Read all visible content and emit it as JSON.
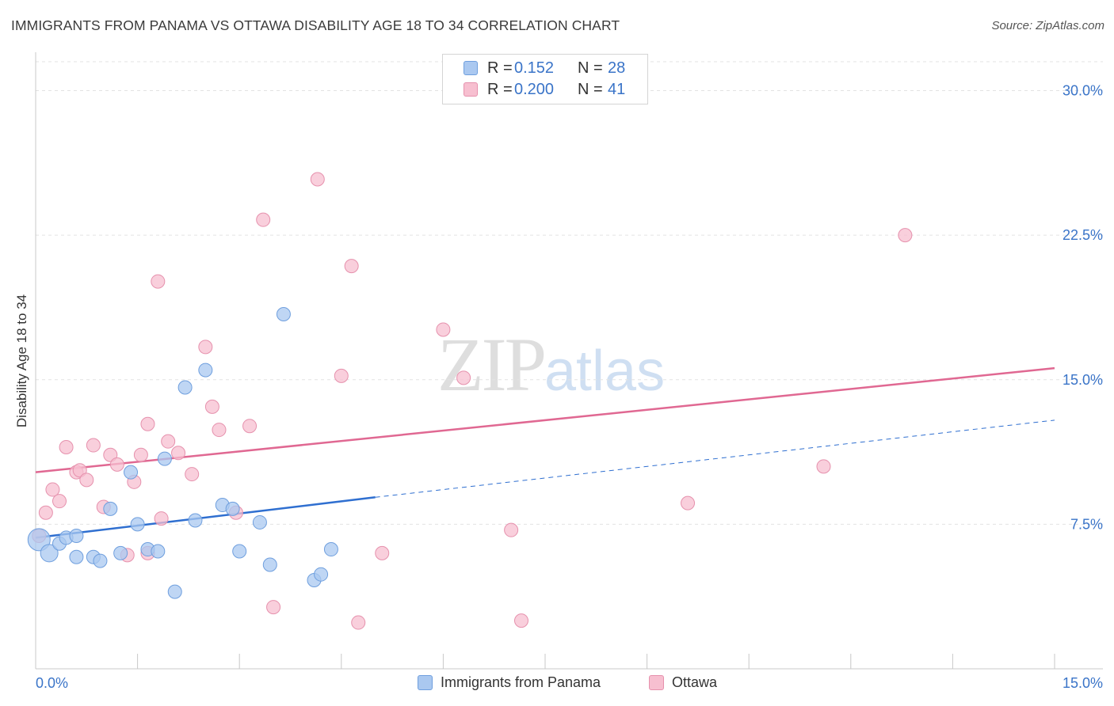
{
  "header": {
    "title": "IMMIGRANTS FROM PANAMA VS OTTAWA DISABILITY AGE 18 TO 34 CORRELATION CHART",
    "source": "Source: ZipAtlas.com"
  },
  "watermark": {
    "zip": "ZIP",
    "atlas": "atlas"
  },
  "legend_top": {
    "rows": [
      {
        "r_label": "R =",
        "r_value": "0.152",
        "n_label": "N =",
        "n_value": "28"
      },
      {
        "r_label": "R =",
        "r_value": "0.200",
        "n_label": "N =",
        "n_value": "41"
      }
    ]
  },
  "colors": {
    "blue_fill": "#aac8f0",
    "blue_stroke": "#6f9fde",
    "blue_line": "#2f6fd0",
    "pink_fill": "#f7bfd0",
    "pink_stroke": "#e691ad",
    "pink_line": "#e06892",
    "grid": "#e3e3e3",
    "tick_label": "#3a74c8"
  },
  "chart_data": {
    "type": "scatter",
    "title": "IMMIGRANTS FROM PANAMA VS OTTAWA DISABILITY AGE 18 TO 34 CORRELATION CHART",
    "xlabel": "",
    "ylabel": "Disability Age 18 to 34",
    "xlim": [
      0,
      15
    ],
    "ylim": [
      0,
      31.5
    ],
    "x_tick_labels": [
      "0.0%",
      "15.0%"
    ],
    "y_ticks": [
      7.5,
      15.0,
      22.5,
      30.0
    ],
    "y_tick_labels": [
      "7.5%",
      "15.0%",
      "22.5%",
      "30.0%"
    ],
    "grid": true,
    "legend_position": "bottom",
    "series": [
      {
        "name": "Immigrants from Panama",
        "color": "#aac8f0",
        "r": 0.152,
        "n": 28,
        "trend": {
          "x0": 0,
          "y0": 6.8,
          "x1": 5.0,
          "y1": 8.9,
          "dash_to_x": 15,
          "dash_to_y": 12.9
        },
        "points": [
          [
            0.05,
            6.7
          ],
          [
            0.2,
            6.0
          ],
          [
            0.35,
            6.5
          ],
          [
            0.45,
            6.8
          ],
          [
            0.6,
            6.9
          ],
          [
            0.6,
            5.8
          ],
          [
            0.85,
            5.8
          ],
          [
            0.95,
            5.6
          ],
          [
            1.1,
            8.3
          ],
          [
            1.25,
            6.0
          ],
          [
            1.4,
            10.2
          ],
          [
            1.5,
            7.5
          ],
          [
            1.65,
            6.2
          ],
          [
            1.8,
            6.1
          ],
          [
            1.9,
            10.9
          ],
          [
            2.05,
            4.0
          ],
          [
            2.2,
            14.6
          ],
          [
            2.35,
            7.7
          ],
          [
            2.5,
            15.5
          ],
          [
            2.75,
            8.5
          ],
          [
            2.9,
            8.3
          ],
          [
            3.0,
            6.1
          ],
          [
            3.3,
            7.6
          ],
          [
            3.45,
            5.4
          ],
          [
            3.65,
            18.4
          ],
          [
            4.1,
            4.6
          ],
          [
            4.2,
            4.9
          ],
          [
            4.35,
            6.2
          ]
        ]
      },
      {
        "name": "Ottawa",
        "color": "#f7bfd0",
        "r": 0.2,
        "n": 41,
        "trend": {
          "x0": 0,
          "y0": 10.2,
          "x1": 15,
          "y1": 15.6
        },
        "points": [
          [
            0.05,
            6.9
          ],
          [
            0.15,
            8.1
          ],
          [
            0.25,
            9.3
          ],
          [
            0.35,
            8.7
          ],
          [
            0.45,
            11.5
          ],
          [
            0.6,
            10.2
          ],
          [
            0.65,
            10.3
          ],
          [
            0.75,
            9.8
          ],
          [
            0.85,
            11.6
          ],
          [
            1.0,
            8.4
          ],
          [
            1.1,
            11.1
          ],
          [
            1.2,
            10.6
          ],
          [
            1.35,
            5.9
          ],
          [
            1.45,
            9.7
          ],
          [
            1.55,
            11.1
          ],
          [
            1.65,
            6.0
          ],
          [
            1.65,
            12.7
          ],
          [
            1.8,
            20.1
          ],
          [
            1.85,
            7.8
          ],
          [
            1.95,
            11.8
          ],
          [
            2.1,
            11.2
          ],
          [
            2.3,
            10.1
          ],
          [
            2.5,
            16.7
          ],
          [
            2.6,
            13.6
          ],
          [
            2.7,
            12.4
          ],
          [
            2.95,
            8.1
          ],
          [
            3.15,
            12.6
          ],
          [
            3.35,
            23.3
          ],
          [
            3.5,
            3.2
          ],
          [
            4.15,
            25.4
          ],
          [
            4.5,
            15.2
          ],
          [
            4.65,
            20.9
          ],
          [
            4.75,
            2.4
          ],
          [
            5.1,
            6.0
          ],
          [
            6.0,
            17.6
          ],
          [
            6.3,
            15.1
          ],
          [
            7.0,
            7.2
          ],
          [
            7.15,
            2.5
          ],
          [
            9.6,
            8.6
          ],
          [
            11.6,
            10.5
          ],
          [
            12.8,
            22.5
          ]
        ]
      }
    ]
  },
  "legend_bottom": {
    "items": [
      {
        "label": "Immigrants from Panama"
      },
      {
        "label": "Ottawa"
      }
    ]
  }
}
